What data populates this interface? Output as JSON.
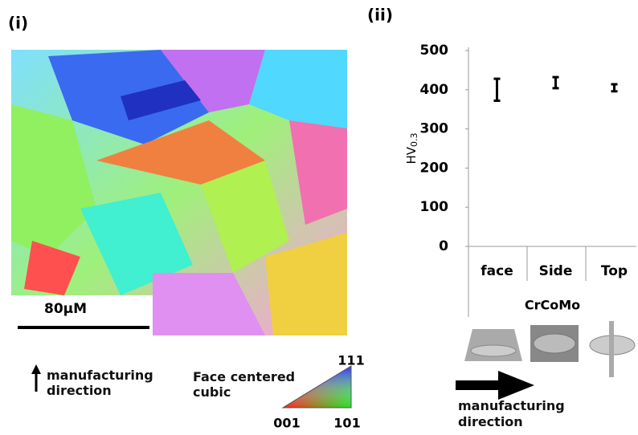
{
  "panel_labels": [
    "(i)",
    "(ii)"
  ],
  "map": {
    "scale_label": "80μM",
    "direction_label": "manufacturing direction",
    "legend": {
      "title": "Face centered cubic",
      "corner_top": "111",
      "corner_left": "001",
      "corner_right": "101"
    }
  },
  "direction_label_ii": "manufacturing direction",
  "chart_data": {
    "type": "errorbar",
    "categories": [
      "face",
      "Side",
      "Top"
    ],
    "values": [
      400,
      418,
      405
    ],
    "errors": [
      28,
      14,
      9
    ],
    "color": "#000000",
    "ylabel": "HV",
    "ylabel_subscript": "0.3",
    "xlabel": "CrCoMo",
    "ylim": [
      0,
      500
    ],
    "yticks": [
      0,
      100,
      200,
      300,
      400,
      500
    ]
  }
}
